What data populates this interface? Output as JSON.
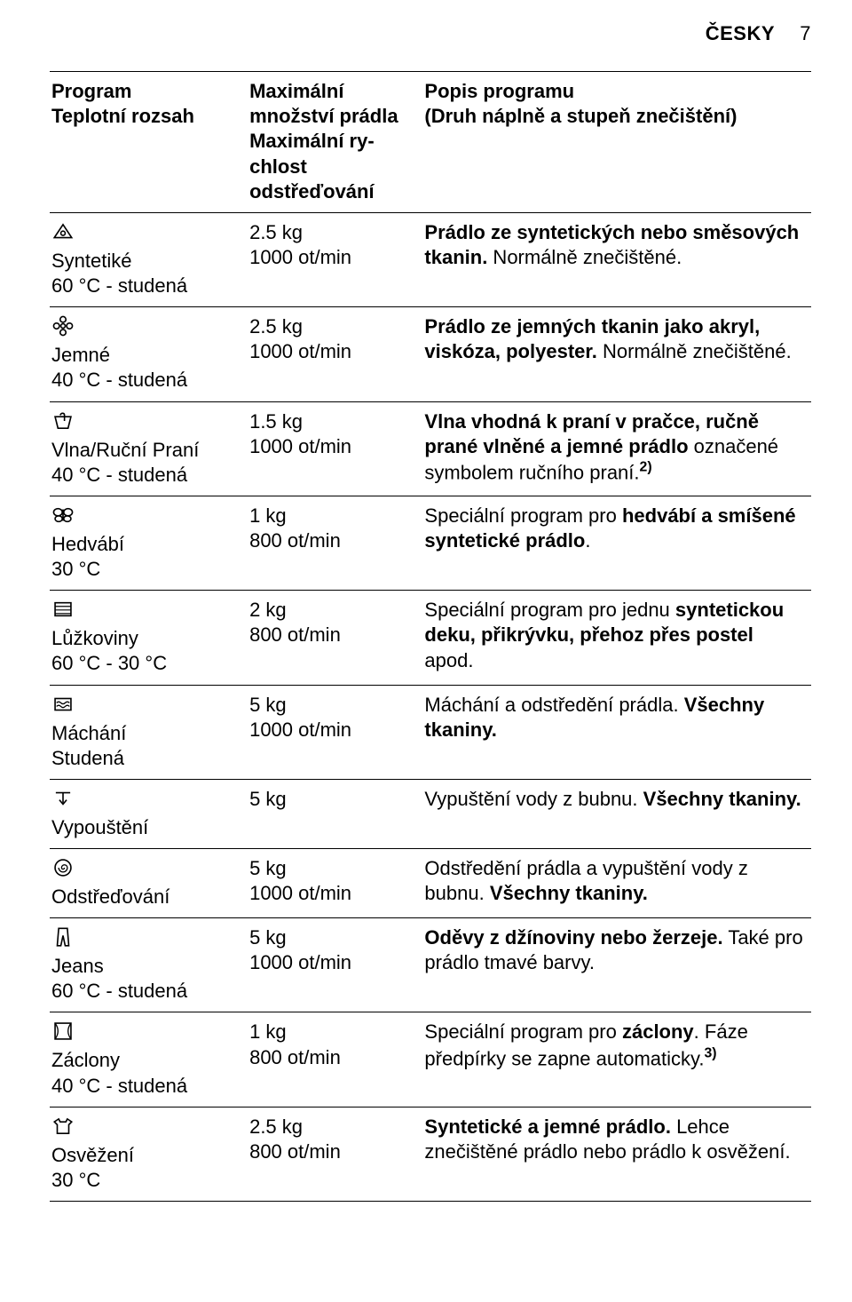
{
  "page_header": {
    "lang": "ČESKY",
    "page_number": "7"
  },
  "columns": {
    "c1a": "Program",
    "c1b": "Teplotní rozsah",
    "c2": "Maximální množství prá­dla\nMaximální ry­chlost odstřeďování",
    "c3a": "Popis programu",
    "c3b": "(Druh náplně a stupeň znečištění)"
  },
  "rows": [
    {
      "icon": "triangle-circle",
      "name": "Syntetiké",
      "temp": "60 °C - studená",
      "capacity": "2.5 kg\n1000 ot/min",
      "desc_html": "<b>Prádlo ze syntetických nebo směsových tka­nin.</b> Normálně znečištěné."
    },
    {
      "icon": "flower",
      "name": "Jemné",
      "temp": "40 °C - studená",
      "capacity": "2.5 kg\n1000 ot/min",
      "desc_html": "<b>Prádlo ze jemných tkanin jako akryl, viskóza, polyester.</b> Normálně znečištěné."
    },
    {
      "icon": "hand-in-basin",
      "name": "Vlna/Ruční Pra­ní",
      "temp": "40 °C - studená",
      "capacity": "1.5 kg\n1000 ot/min",
      "desc_html": "<b>Vlna vhodná k praní v pračce, ručně prané vlněné a jemné prádlo</b> označené symbolem ručního praní.<b><sup>2)</sup></b>"
    },
    {
      "icon": "butterfly",
      "name": "Hedvábí",
      "temp": "30 °C",
      "capacity": "1 kg\n800 ot/min",
      "desc_html": "Speciální program pro <b>hedvábí a smíšené syn­tetické prádlo</b>."
    },
    {
      "icon": "bedding",
      "name": "Lůžkoviny",
      "temp": "60 °C - 30 °C",
      "capacity": "2 kg\n800 ot/min",
      "desc_html": "Speciální program pro jednu <b>syntetickou deku, přikrývku, přehoz přes postel</b> apod."
    },
    {
      "icon": "rinse",
      "name": "Máchání",
      "temp": "Studená",
      "capacity": "5 kg\n1000 ot/min",
      "desc_html": "Máchání a odstředění prádla. <b>Všechny tkaniny.</b>"
    },
    {
      "icon": "drain",
      "name": "Vypouštění",
      "temp": "",
      "capacity": "5 kg",
      "desc_html": "Vypuštění vody z bubnu. <b>Všechny tkaniny.</b>"
    },
    {
      "icon": "spiral",
      "name": "Odstřeďování",
      "temp": "",
      "capacity": "5 kg\n1000 ot/min",
      "desc_html": "Odstředění prádla a vypuštění vody z bubnu. <b>Všechny tkaniny.</b>"
    },
    {
      "icon": "jeans",
      "name": "Jeans",
      "temp": "60 °C - studená",
      "capacity": "5 kg\n1000 ot/min",
      "desc_html": "<b>Oděvy z džínoviny nebo žerzeje.</b> Také pro prá­dlo tmavé barvy."
    },
    {
      "icon": "curtains",
      "name": "Záclony",
      "temp": "40 °C - studená",
      "capacity": "1 kg\n800 ot/min",
      "desc_html": "Speciální program pro <b>záclony</b>. Fáze předpírky se zapne automaticky.<b><sup>3)</sup></b>"
    },
    {
      "icon": "tshirt",
      "name": "Osvěžení",
      "temp": "30 °C",
      "capacity": "2.5 kg\n800 ot/min",
      "desc_html": "<b>Syntetické a jemné prádlo.</b> Lehce znečištěné prádlo nebo prádlo k osvěžení."
    }
  ],
  "icons_svg": {
    "triangle-circle": "<svg viewBox='0 0 32 32' width='26' height='26'><path d='M4 24 L16 6 L28 24 Z' fill='none' stroke='#000' stroke-width='2'/><circle cx='16' cy='18' r='3' fill='none' stroke='#000' stroke-width='2'/></svg>",
    "flower": "<svg viewBox='0 0 32 32' width='26' height='26'><g fill='none' stroke='#000' stroke-width='2'><circle cx='16' cy='16' r='3'/><circle cx='16' cy='7' r='4'/><circle cx='16' cy='25' r='4'/><circle cx='7' cy='16' r='4'/><circle cx='25' cy='16' r='4'/></g></svg>",
    "hand-in-basin": "<svg viewBox='0 0 32 32' width='26' height='26'><path d='M5 10 H27 L23 26 H9 Z' fill='none' stroke='#000' stroke-width='2'/><path d='M12 8 C14 4 18 5 18 8 L18 16' fill='none' stroke='#000' stroke-width='2'/></svg>",
    "butterfly": "<svg viewBox='0 0 32 32' width='26' height='26'><g fill='none' stroke='#000' stroke-width='2'><path d='M16 8 V24'/><ellipse cx='9' cy='12' rx='6' ry='5'/><ellipse cx='23' cy='12' rx='6' ry='5'/><ellipse cx='10' cy='21' rx='5' ry='4'/><ellipse cx='22' cy='21' rx='5' ry='4'/></g></svg>",
    "bedding": "<svg viewBox='0 0 32 32' width='26' height='26'><rect x='5' y='7' width='22' height='18' fill='none' stroke='#000' stroke-width='2'/><path d='M5 12 H27 M5 17 H27 M5 22 H27' stroke='#000' stroke-width='1.4'/></svg>",
    "rinse": "<svg viewBox='0 0 32 32' width='26' height='26'><rect x='5' y='8' width='22' height='16' fill='none' stroke='#000' stroke-width='2'/><path d='M7 14 q3 -3 6 0 t6 0 t6 0' fill='none' stroke='#000' stroke-width='1.6'/><path d='M7 19 q3 -3 6 0 t6 0 t6 0' fill='none' stroke='#000' stroke-width='1.6'/></svg>",
    "drain": "<svg viewBox='0 0 32 32' width='26' height='26'><path d='M6 8 H26' stroke='#000' stroke-width='2'/><path d='M16 8 V22' stroke='#000' stroke-width='2'/><path d='M11 18 L16 24 L21 18' fill='none' stroke='#000' stroke-width='2'/></svg>",
    "spiral": "<svg viewBox='0 0 32 32' width='26' height='26'><circle cx='16' cy='16' r='11' fill='none' stroke='#000' stroke-width='2'/><path d='M16 16 m-6 0 a6 6 0 1 0 12 0 a4 4 0 1 0 -8 0 a2 2 0 1 0 4 0' fill='none' stroke='#000' stroke-width='1.6'/></svg>",
    "jeans": "<svg viewBox='0 0 32 32' width='26' height='26'><path d='M10 4 H22 L24 28 H19 L16 14 L13 28 H8 Z' fill='none' stroke='#000' stroke-width='2'/></svg>",
    "curtains": "<svg viewBox='0 0 32 32' width='26' height='26'><rect x='5' y='5' width='22' height='22' fill='none' stroke='#000' stroke-width='2'/><path d='M5 5 Q13 16 5 27 M27 5 Q19 16 27 27' fill='none' stroke='#000' stroke-width='1.6'/></svg>",
    "tshirt": "<svg viewBox='0 0 32 32' width='26' height='26'><path d='M10 6 L4 10 L8 14 L8 26 H24 L24 14 L28 10 L22 6 L20 10 H12 Z' fill='none' stroke='#000' stroke-width='2'/></svg>"
  }
}
